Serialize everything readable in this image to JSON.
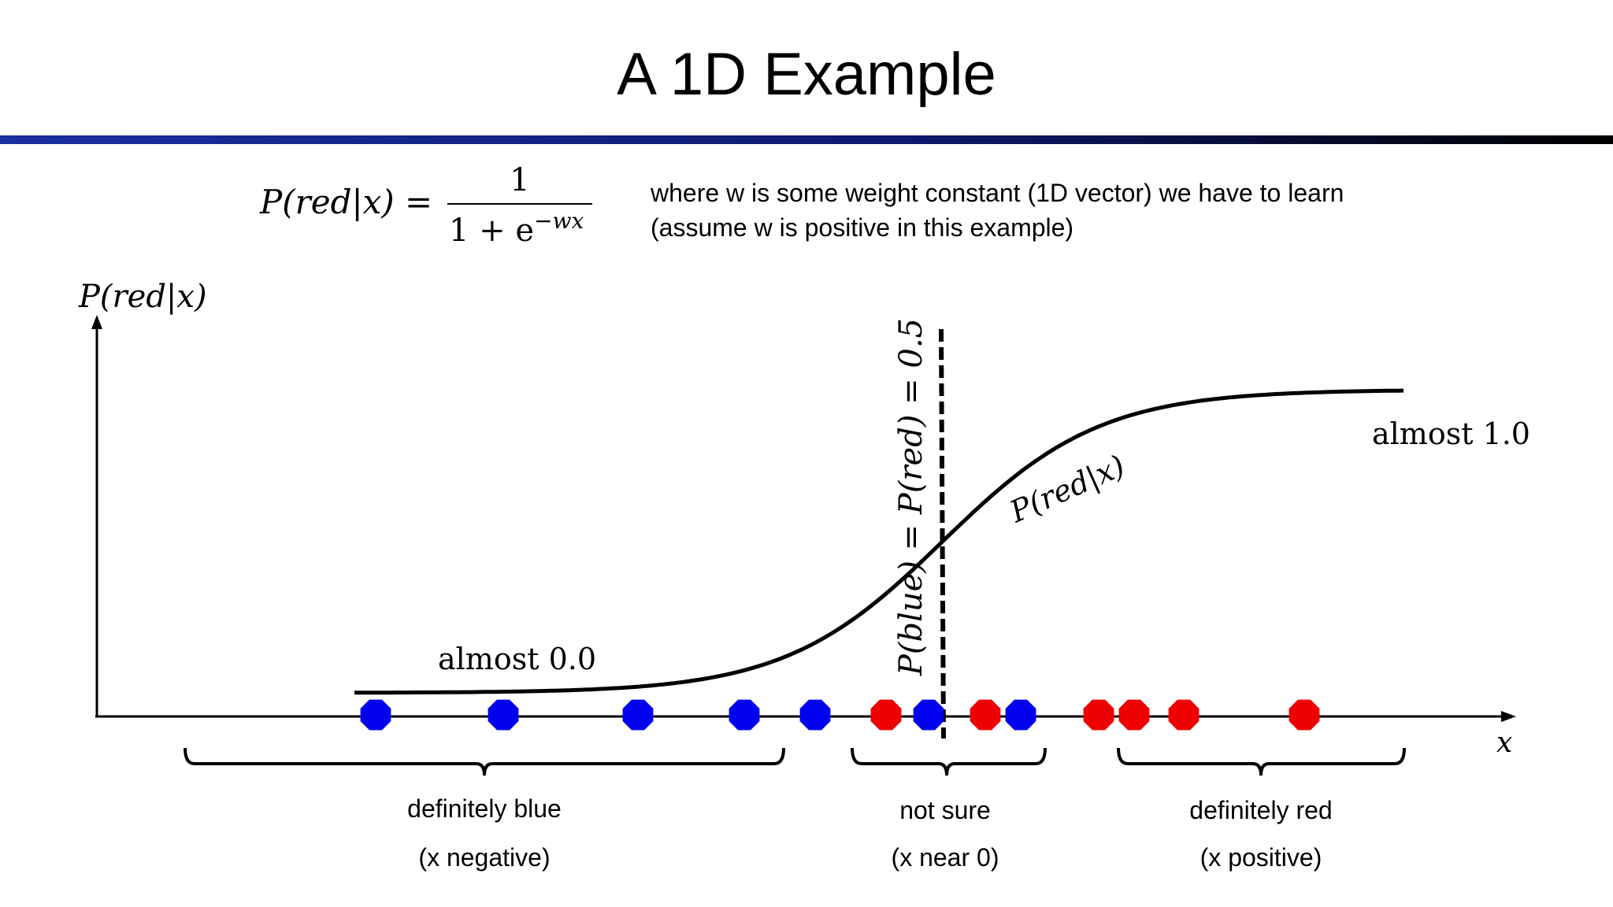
{
  "slide": {
    "title": "A 1D Example"
  },
  "formula": {
    "lhs": "P(red|x) =",
    "numerator": "1",
    "denominator_base": "1 + e",
    "denominator_exponent": "−wx",
    "note_line1": "where w is some weight constant (1D vector) we have to learn",
    "note_line2": "(assume w is positive in this example)"
  },
  "axes": {
    "y_label": "P(red|x)",
    "x_label": "x"
  },
  "curve": {
    "label": "P(red|x)",
    "low_label": "almost 0.0",
    "high_label": "almost 1.0"
  },
  "boundary": {
    "label": "P(blue) = P(red) = 0.5"
  },
  "points": {
    "colors": {
      "blue": "#0000ee",
      "red": "#ee0000"
    },
    "list": [
      {
        "x": -8.0,
        "color": "blue"
      },
      {
        "x": -6.2,
        "color": "blue"
      },
      {
        "x": -4.3,
        "color": "blue"
      },
      {
        "x": -2.8,
        "color": "blue"
      },
      {
        "x": -1.8,
        "color": "blue"
      },
      {
        "x": -0.8,
        "color": "red"
      },
      {
        "x": -0.2,
        "color": "blue"
      },
      {
        "x": 0.6,
        "color": "red"
      },
      {
        "x": 1.1,
        "color": "blue"
      },
      {
        "x": 2.2,
        "color": "red"
      },
      {
        "x": 2.7,
        "color": "red"
      },
      {
        "x": 3.4,
        "color": "red"
      },
      {
        "x": 5.1,
        "color": "red"
      }
    ]
  },
  "regions": [
    {
      "label": "definitely blue",
      "sublabel": "(x negative)"
    },
    {
      "label": "not sure",
      "sublabel": "(x near 0)"
    },
    {
      "label": "definitely red",
      "sublabel": "(x positive)"
    }
  ],
  "colors": {
    "title_bar_left": "#1a2fa0",
    "title_bar_right": "#000000",
    "ink": "#000000"
  }
}
